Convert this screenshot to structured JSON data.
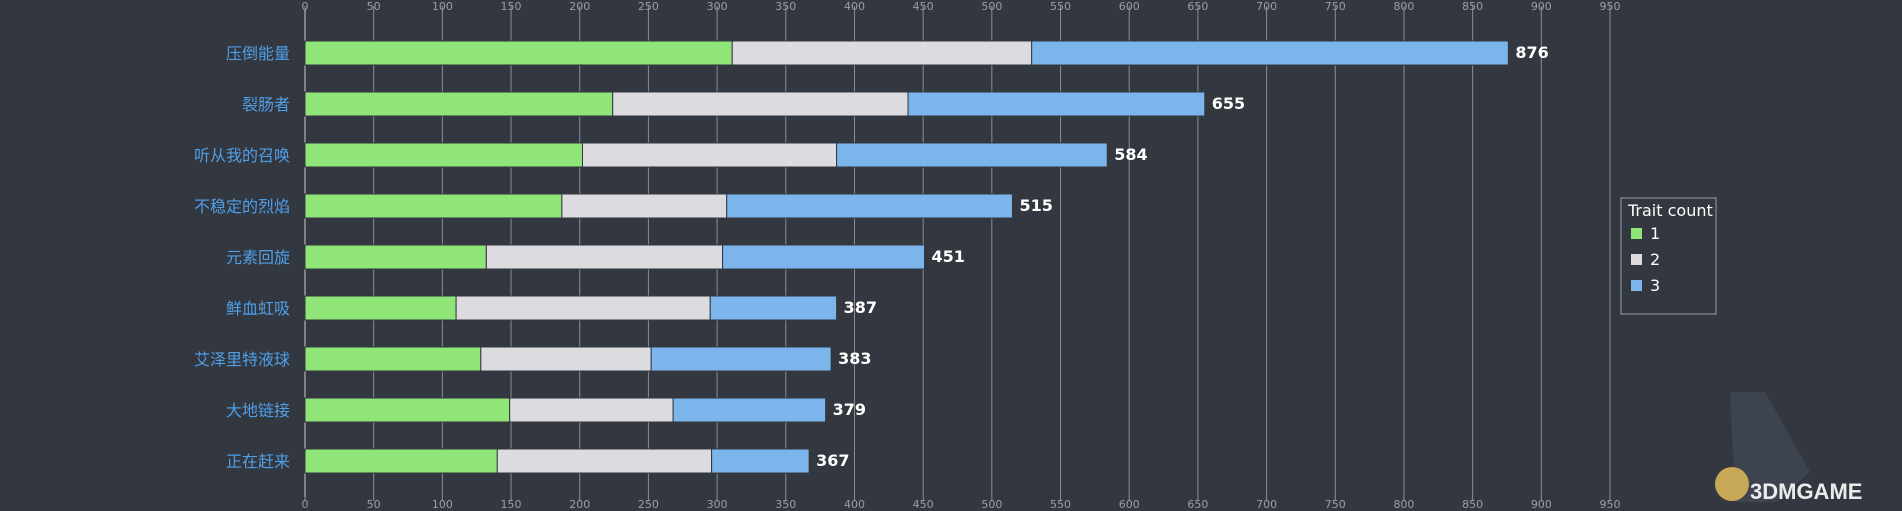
{
  "chart_data": {
    "type": "bar",
    "orientation": "horizontal",
    "stacked": true,
    "categories": [
      "压倒能量",
      "裂肠者",
      "听从我的召唤",
      "不稳定的烈焰",
      "元素回旋",
      "鲜血虹吸",
      "艾泽里特液球",
      "大地链接",
      "正在赶来"
    ],
    "series": [
      {
        "name": "1",
        "color": "#8fe577",
        "values": [
          311,
          224,
          202,
          187,
          132,
          110,
          128,
          149,
          140
        ]
      },
      {
        "name": "2",
        "color": "#dcdce0",
        "values": [
          218,
          215,
          185,
          120,
          172,
          185,
          124,
          119,
          156
        ]
      },
      {
        "name": "3",
        "color": "#7cb5ec",
        "values": [
          347,
          216,
          197,
          208,
          147,
          92,
          131,
          111,
          71
        ]
      }
    ],
    "totals": [
      876,
      655,
      584,
      515,
      451,
      387,
      383,
      379,
      367
    ],
    "xlim": [
      0,
      950
    ],
    "xticks": [
      0,
      50,
      100,
      150,
      200,
      250,
      300,
      350,
      400,
      450,
      500,
      550,
      600,
      650,
      700,
      750,
      800,
      850,
      900,
      950
    ],
    "grid": true,
    "legend": {
      "title": "Trait count",
      "position": "right",
      "entries": [
        "1",
        "2",
        "3"
      ]
    }
  },
  "watermark": {
    "text": "3DMGAME"
  }
}
